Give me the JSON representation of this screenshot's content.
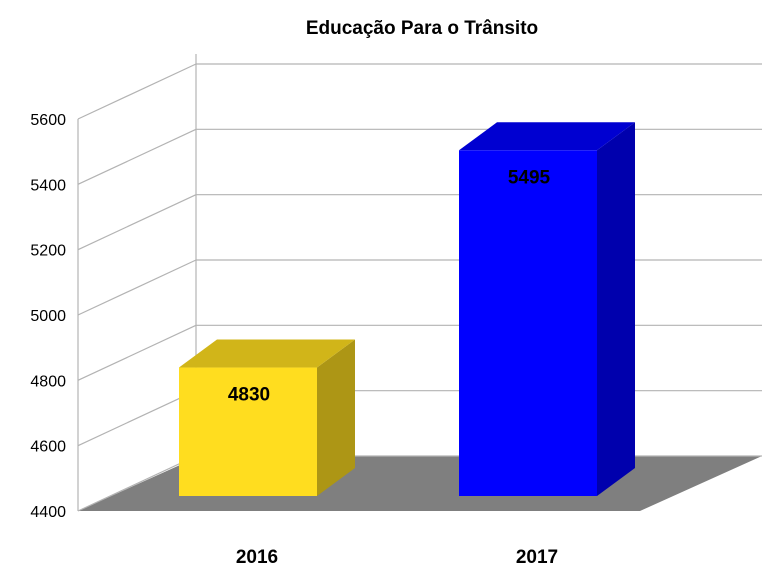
{
  "chart_data": {
    "type": "bar",
    "title": "Educação Para o Trânsito",
    "categories": [
      "2016",
      "2017"
    ],
    "values": [
      4830,
      5495
    ],
    "bar_colors": [
      "#ffdd1f",
      "#0000ff"
    ],
    "ylim": [
      4400,
      5600
    ],
    "yticks": [
      "4400",
      "4600",
      "4800",
      "5000",
      "5200",
      "5400",
      "5600"
    ],
    "data_labels": [
      "4830",
      "5495"
    ],
    "grid": true,
    "legend": "none",
    "style": "3d"
  }
}
